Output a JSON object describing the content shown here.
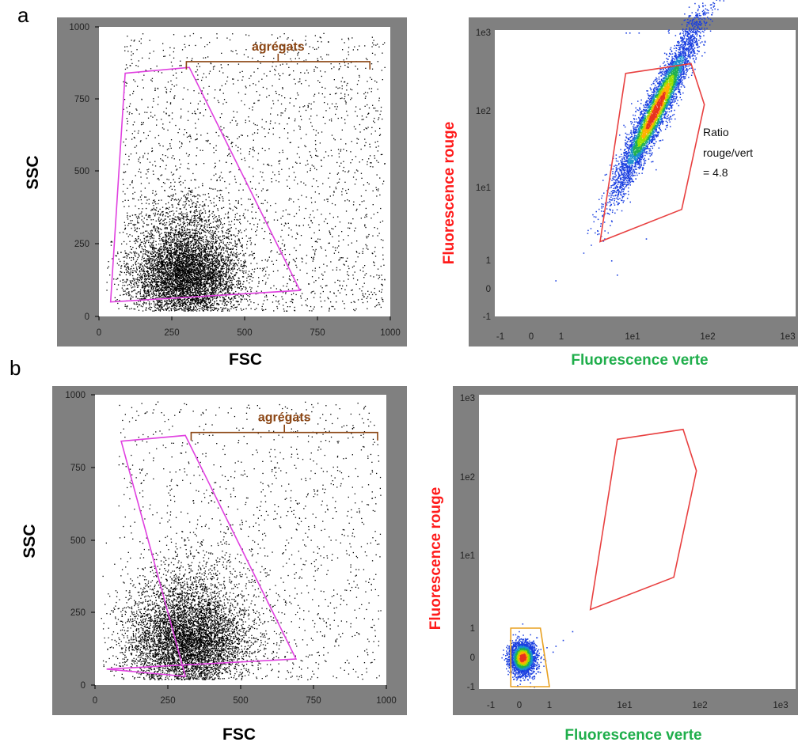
{
  "colors": {
    "frame": "#808080",
    "plot_bg": "#ffffff",
    "dot_black": "#000000",
    "gate_magenta": "#e040e0",
    "gate_red": "#e84040",
    "gate_orange": "#e8a020",
    "bracket_brown": "#8b4513",
    "red_title": "#ff1a1a",
    "green_title": "#1fae4b"
  },
  "panels": {
    "a": {
      "letter": "a"
    },
    "b": {
      "letter": "b"
    }
  },
  "chart_data": [
    {
      "id": "a-scatter",
      "panel": "a",
      "type": "scatter",
      "xlabel": "FSC",
      "ylabel": "SSC",
      "xlim": [
        0,
        1000
      ],
      "ylim": [
        0,
        1000
      ],
      "xticks": [
        "0",
        "250",
        "500",
        "750",
        "1000"
      ],
      "yticks": [
        "0",
        "250",
        "500",
        "750",
        "1000"
      ],
      "annotation": "agrégats",
      "bracket_x": [
        300,
        930
      ],
      "bracket_y": 880,
      "gate_color": "magenta",
      "gate_polygon": [
        [
          90,
          840
        ],
        [
          310,
          860
        ],
        [
          690,
          90
        ],
        [
          40,
          50
        ]
      ],
      "population": {
        "center": [
          300,
          130
        ],
        "spread": [
          90,
          70
        ],
        "n": 6000,
        "sparse_n": 2200
      }
    },
    {
      "id": "a-fluo",
      "panel": "a",
      "type": "scatter",
      "xlabel": "Fluorescence verte",
      "ylabel": "Fluorescence rouge",
      "x_scale": "log",
      "y_scale": "log",
      "xticks": [
        "-1",
        "0",
        "1",
        "1e1",
        "1e2",
        "1e3"
      ],
      "yticks": [
        "-1",
        "0",
        "1",
        "1e1",
        "1e2",
        "1e3"
      ],
      "annotation_lines": [
        "Ratio",
        "rouge/vert",
        "= 4.8"
      ],
      "gate_color": "red",
      "gate_polygon": [
        [
          8,
          300
        ],
        [
          60,
          400
        ],
        [
          90,
          120
        ],
        [
          45,
          5
        ],
        [
          3.5,
          1.8
        ]
      ],
      "population": {
        "center": [
          20,
          100
        ],
        "shape": "diagonal elongated cloud",
        "n": 5000
      }
    },
    {
      "id": "b-scatter",
      "panel": "b",
      "type": "scatter",
      "xlabel": "FSC",
      "ylabel": "SSC",
      "xlim": [
        0,
        1000
      ],
      "ylim": [
        0,
        1000
      ],
      "xticks": [
        "0",
        "250",
        "500",
        "750",
        "1000"
      ],
      "yticks": [
        "0",
        "250",
        "500",
        "750",
        "1000"
      ],
      "annotation": "agrégats",
      "bracket_x": [
        330,
        970
      ],
      "bracket_y": 870,
      "gate_color": "magenta",
      "gate_polygon": [
        [
          90,
          840
        ],
        [
          310,
          860
        ],
        [
          690,
          90
        ],
        [
          40,
          55
        ],
        [
          310,
          30
        ]
      ],
      "population": {
        "center": [
          320,
          140
        ],
        "spread": [
          100,
          75
        ],
        "n": 6000,
        "sparse_n": 1400
      }
    },
    {
      "id": "b-fluo",
      "panel": "b",
      "type": "scatter",
      "xlabel": "Fluorescence verte",
      "ylabel": "Fluorescence rouge",
      "x_scale": "log",
      "y_scale": "log",
      "xticks": [
        "-1",
        "0",
        "1",
        "1e1",
        "1e2",
        "1e3"
      ],
      "yticks": [
        "-1",
        "0",
        "1",
        "1e1",
        "1e2",
        "1e3"
      ],
      "gate_color": "red",
      "gate_polygon": [
        [
          8,
          300
        ],
        [
          60,
          400
        ],
        [
          90,
          120
        ],
        [
          45,
          5
        ],
        [
          3.5,
          1.8
        ]
      ],
      "gate2_color": "orange",
      "gate2_polygon": [
        [
          -0.3,
          1
        ],
        [
          0.7,
          1
        ],
        [
          1,
          -1
        ],
        [
          -0.3,
          -1
        ]
      ],
      "population": {
        "center": [
          0.1,
          0.0
        ],
        "shape": "tight round cluster near origin",
        "n": 2500
      }
    }
  ]
}
